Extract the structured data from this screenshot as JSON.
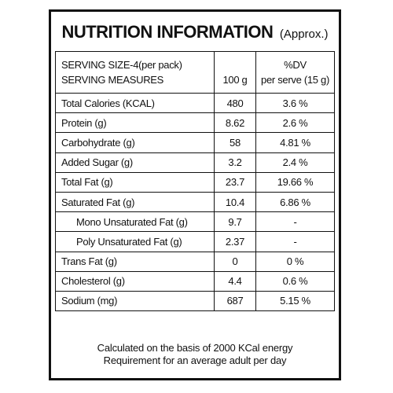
{
  "title": "NUTRITION INFORMATION",
  "title_suffix": "(Approx.)",
  "header": {
    "serving_size": "SERVING SIZE-4(per pack)",
    "serving_measures": "SERVING MEASURES",
    "col_per100": "100 g",
    "col_dv_line1": "%DV",
    "col_dv_line2": "per serve (15 g)"
  },
  "rows": [
    {
      "name": "Total Calories (KCAL)",
      "per100": "480",
      "dv": "3.6 %"
    },
    {
      "name": "Protein (g)",
      "per100": "8.62",
      "dv": "2.6 %"
    },
    {
      "name": "Carbohydrate (g)",
      "per100": "58",
      "dv": "4.81 %"
    },
    {
      "name": "Added Sugar (g)",
      "per100": "3.2",
      "dv": "2.4 %"
    },
    {
      "name": "Total Fat (g)",
      "per100": "23.7",
      "dv": "19.66 %"
    },
    {
      "name": "Saturated Fat (g)",
      "per100": "10.4",
      "dv": "6.86 %"
    },
    {
      "name": "Mono Unsaturated Fat (g)",
      "per100": "9.7",
      "dv": "-"
    },
    {
      "name": "Poly Unsaturated Fat (g)",
      "per100": "2.37",
      "dv": "-"
    },
    {
      "name": "Trans Fat (g)",
      "per100": "0",
      "dv": "0 %"
    },
    {
      "name": "Cholesterol (g)",
      "per100": "4.4",
      "dv": "0.6 %"
    },
    {
      "name": "Sodium (mg)",
      "per100": "687",
      "dv": "5.15 %"
    }
  ],
  "footer": {
    "line1": "Calculated on the basis of 2000 KCal energy",
    "line2": "Requirement for an average adult per day"
  }
}
